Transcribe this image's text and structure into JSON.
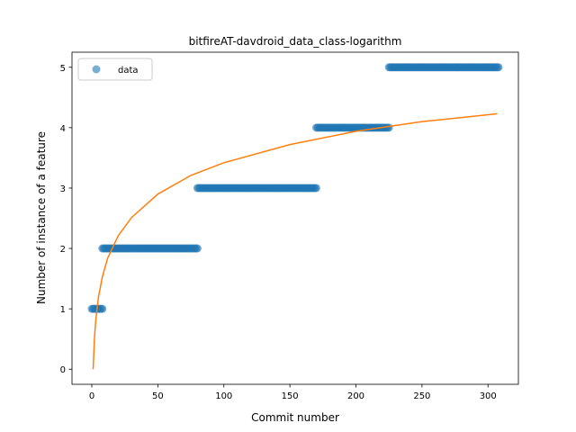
{
  "chart_data": {
    "type": "scatter",
    "title": "bitfireAT-davdroid_data_class-logarithm",
    "xlabel": "Commit number",
    "ylabel": "Number of instance of a feature",
    "xlim": [
      -15,
      323
    ],
    "ylim": [
      -0.25,
      5.25
    ],
    "xticks": [
      0,
      50,
      100,
      150,
      200,
      250,
      300
    ],
    "yticks": [
      0,
      1,
      2,
      3,
      4,
      5
    ],
    "grid": false,
    "legend": {
      "position": "top-left",
      "entries": [
        "data"
      ]
    },
    "series": [
      {
        "name": "data",
        "kind": "points",
        "color": "#1f77b4",
        "segments": [
          {
            "x_start": 0,
            "x_end": 8,
            "y": 1
          },
          {
            "x_start": 8,
            "x_end": 80,
            "y": 2
          },
          {
            "x_start": 80,
            "x_end": 170,
            "y": 3
          },
          {
            "x_start": 170,
            "x_end": 225,
            "y": 4
          },
          {
            "x_start": 225,
            "x_end": 308,
            "y": 5
          }
        ]
      },
      {
        "kind": "line",
        "color": "#ff7f0e",
        "x": [
          1,
          2,
          3,
          5,
          8,
          12,
          20,
          30,
          50,
          75,
          100,
          150,
          200,
          250,
          307
        ],
        "y": [
          0.0,
          0.51,
          0.81,
          1.19,
          1.53,
          1.84,
          2.21,
          2.51,
          2.9,
          3.21,
          3.42,
          3.72,
          3.94,
          4.1,
          4.23
        ]
      }
    ]
  }
}
